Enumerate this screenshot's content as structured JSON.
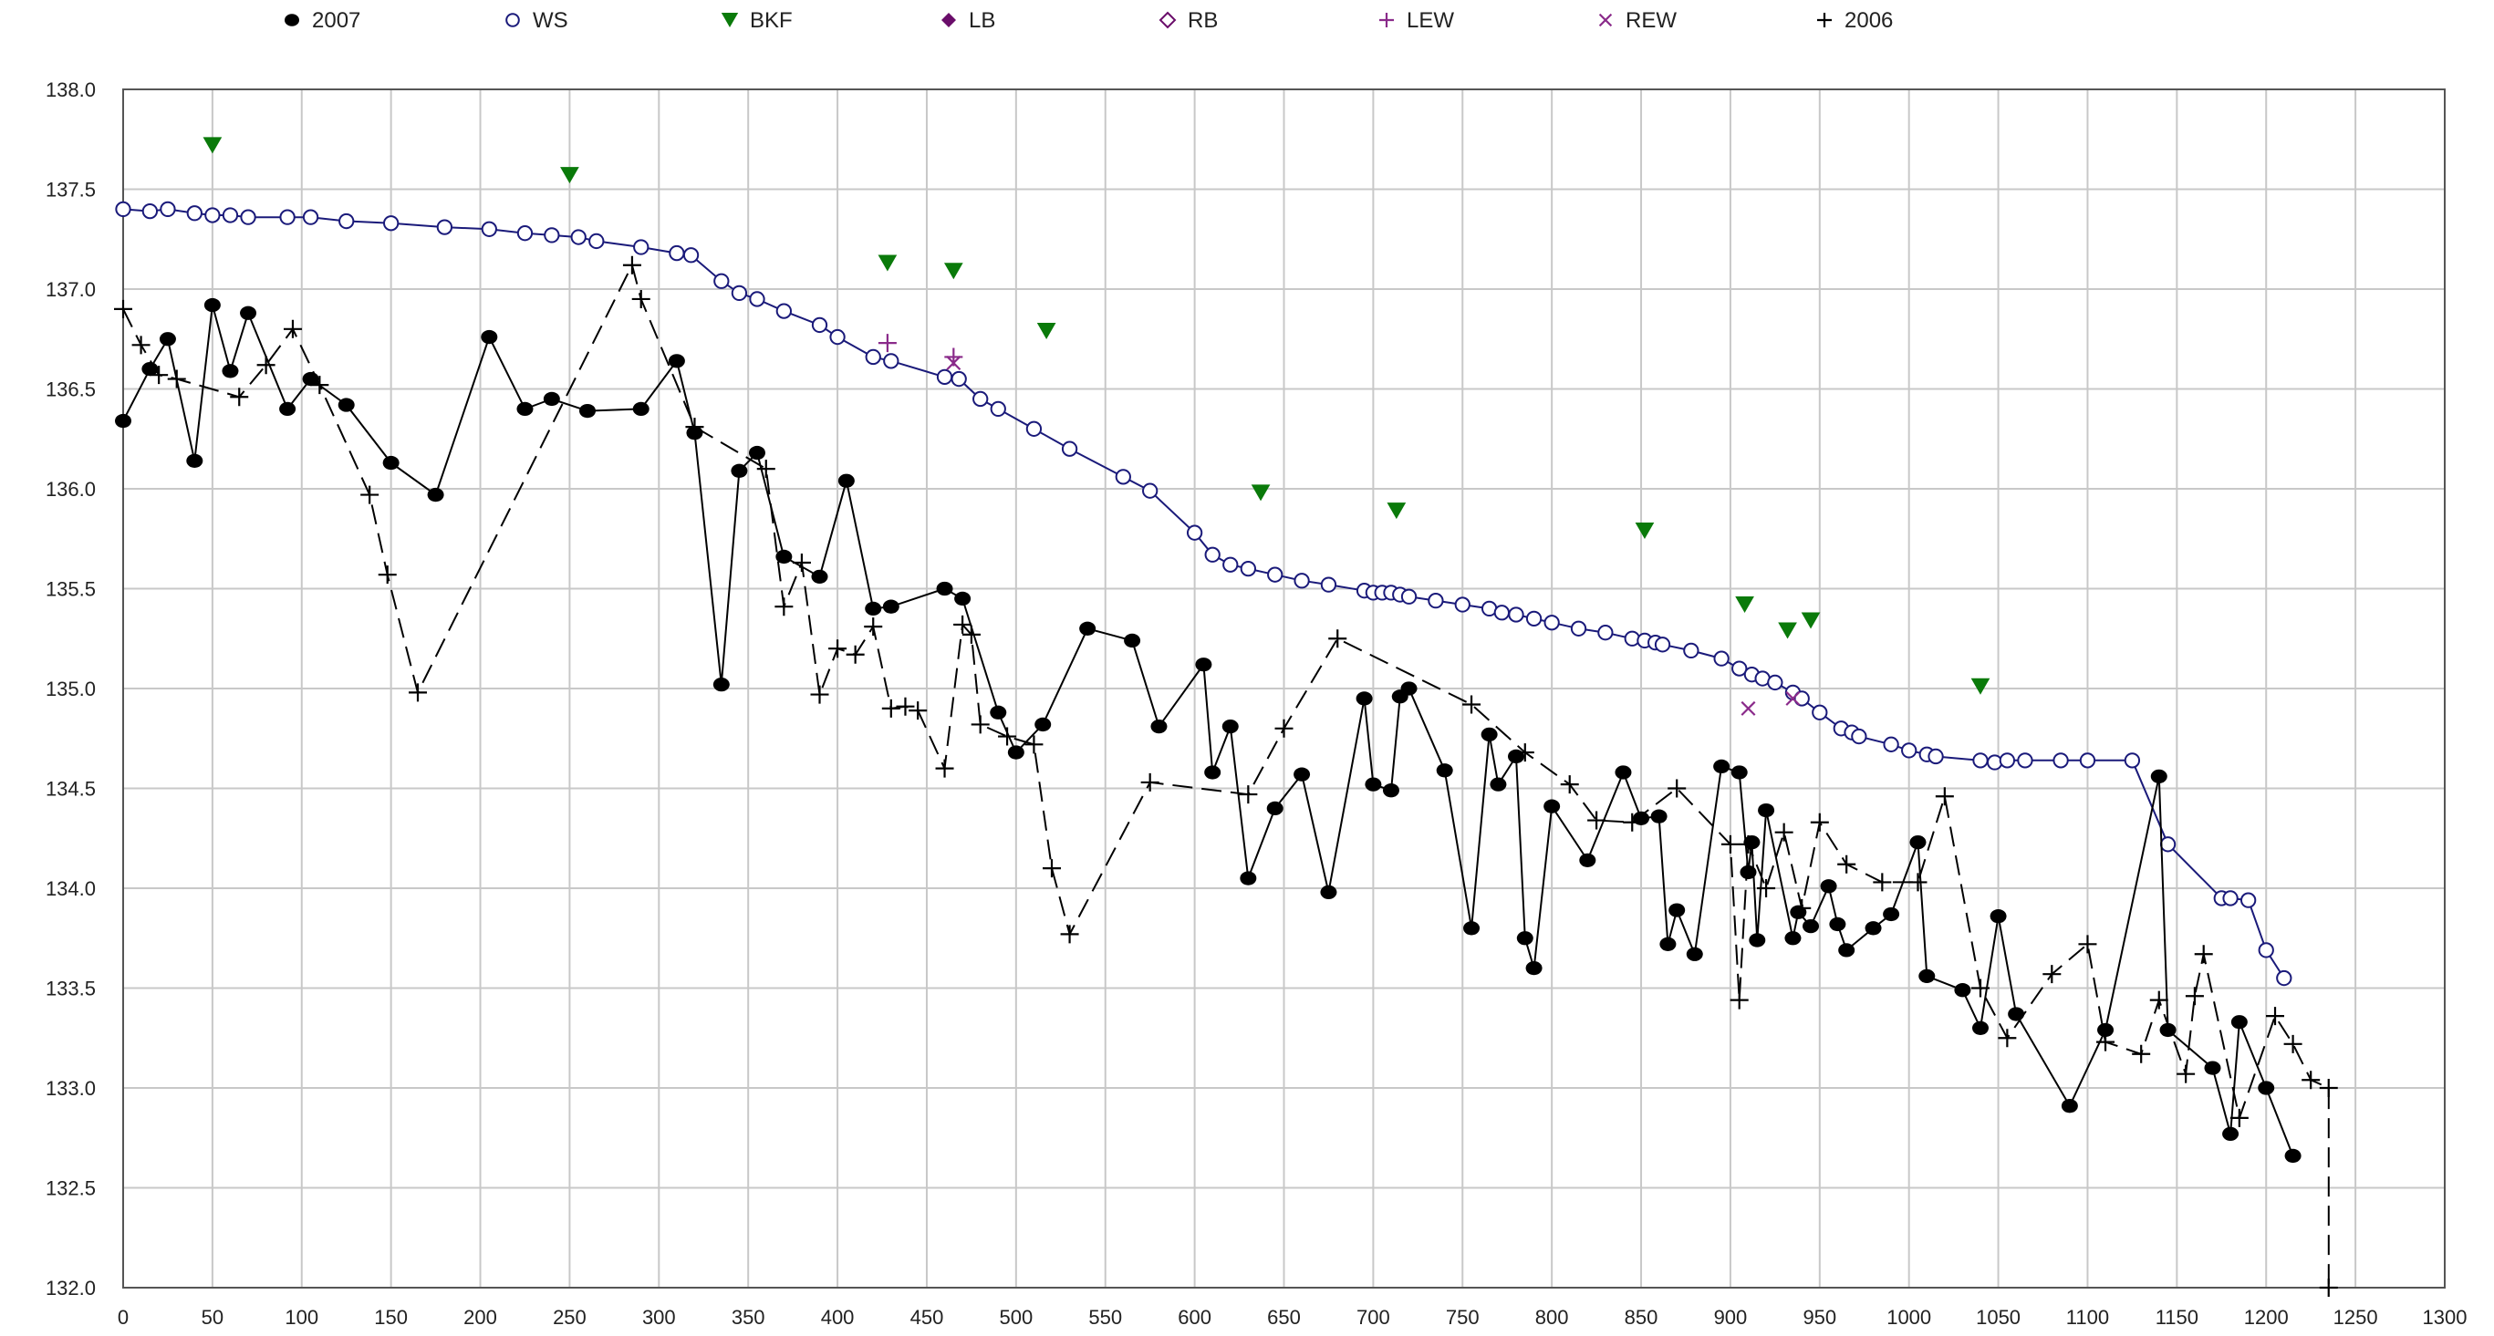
{
  "chart_data": {
    "type": "scatter",
    "title": "",
    "xlabel": "",
    "ylabel": "",
    "xlim": [
      0,
      1300
    ],
    "ylim": [
      132.0,
      138.0
    ],
    "x_ticks": [
      0,
      50,
      100,
      150,
      200,
      250,
      300,
      350,
      400,
      450,
      500,
      550,
      600,
      650,
      700,
      750,
      800,
      850,
      900,
      950,
      1000,
      1050,
      1100,
      1150,
      1200,
      1250,
      1300
    ],
    "y_ticks": [
      132.0,
      132.5,
      133.0,
      133.5,
      134.0,
      134.5,
      135.0,
      135.5,
      136.0,
      136.5,
      137.0,
      137.5,
      138.0
    ],
    "grid": true,
    "legend_position": "top",
    "series": [
      {
        "name": "2007",
        "marker": "filled-circle",
        "line": "solid",
        "color": "#000000",
        "points": [
          [
            0,
            136.34
          ],
          [
            15,
            136.6
          ],
          [
            25,
            136.75
          ],
          [
            40,
            136.14
          ],
          [
            50,
            136.92
          ],
          [
            60,
            136.59
          ],
          [
            70,
            136.88
          ],
          [
            92,
            136.4
          ],
          [
            105,
            136.55
          ],
          [
            125,
            136.42
          ],
          [
            150,
            136.13
          ],
          [
            175,
            135.97
          ],
          [
            205,
            136.76
          ],
          [
            225,
            136.4
          ],
          [
            240,
            136.45
          ],
          [
            260,
            136.39
          ],
          [
            290,
            136.4
          ],
          [
            310,
            136.64
          ],
          [
            320,
            136.28
          ],
          [
            335,
            135.02
          ],
          [
            345,
            136.09
          ],
          [
            355,
            136.18
          ],
          [
            370,
            135.66
          ],
          [
            390,
            135.56
          ],
          [
            405,
            136.04
          ],
          [
            420,
            135.4
          ],
          [
            430,
            135.41
          ],
          [
            460,
            135.5
          ],
          [
            470,
            135.45
          ],
          [
            490,
            134.88
          ],
          [
            500,
            134.68
          ],
          [
            515,
            134.82
          ],
          [
            540,
            135.3
          ],
          [
            565,
            135.24
          ],
          [
            580,
            134.81
          ],
          [
            605,
            135.12
          ],
          [
            610,
            134.58
          ],
          [
            620,
            134.81
          ],
          [
            630,
            134.05
          ],
          [
            645,
            134.4
          ],
          [
            660,
            134.57
          ],
          [
            675,
            133.98
          ],
          [
            695,
            134.95
          ],
          [
            700,
            134.52
          ],
          [
            710,
            134.49
          ],
          [
            715,
            134.96
          ],
          [
            720,
            135.0
          ],
          [
            740,
            134.59
          ],
          [
            755,
            133.8
          ],
          [
            765,
            134.77
          ],
          [
            770,
            134.52
          ],
          [
            780,
            134.66
          ],
          [
            785,
            133.75
          ],
          [
            790,
            133.6
          ],
          [
            800,
            134.41
          ],
          [
            820,
            134.14
          ],
          [
            840,
            134.58
          ],
          [
            850,
            134.35
          ],
          [
            860,
            134.36
          ],
          [
            865,
            133.72
          ],
          [
            870,
            133.89
          ],
          [
            880,
            133.67
          ],
          [
            895,
            134.61
          ],
          [
            905,
            134.58
          ],
          [
            910,
            134.08
          ],
          [
            912,
            134.23
          ],
          [
            915,
            133.74
          ],
          [
            920,
            134.39
          ],
          [
            935,
            133.75
          ],
          [
            938,
            133.88
          ],
          [
            945,
            133.81
          ],
          [
            955,
            134.01
          ],
          [
            960,
            133.82
          ],
          [
            965,
            133.69
          ],
          [
            980,
            133.8
          ],
          [
            990,
            133.87
          ],
          [
            1005,
            134.23
          ],
          [
            1010,
            133.56
          ],
          [
            1030,
            133.49
          ],
          [
            1040,
            133.3
          ],
          [
            1050,
            133.86
          ],
          [
            1060,
            133.37
          ],
          [
            1090,
            132.91
          ],
          [
            1110,
            133.29
          ],
          [
            1140,
            134.56
          ],
          [
            1145,
            133.29
          ],
          [
            1170,
            133.1
          ],
          [
            1180,
            132.77
          ],
          [
            1185,
            133.33
          ],
          [
            1200,
            133.0
          ],
          [
            1215,
            132.66
          ]
        ]
      },
      {
        "name": "WS",
        "marker": "open-circle",
        "line": "solid",
        "color": "#1a1a7a",
        "points": [
          [
            0,
            137.4
          ],
          [
            15,
            137.39
          ],
          [
            25,
            137.4
          ],
          [
            40,
            137.38
          ],
          [
            50,
            137.37
          ],
          [
            60,
            137.37
          ],
          [
            70,
            137.36
          ],
          [
            92,
            137.36
          ],
          [
            105,
            137.36
          ],
          [
            125,
            137.34
          ],
          [
            150,
            137.33
          ],
          [
            180,
            137.31
          ],
          [
            205,
            137.3
          ],
          [
            225,
            137.28
          ],
          [
            240,
            137.27
          ],
          [
            255,
            137.26
          ],
          [
            265,
            137.24
          ],
          [
            290,
            137.21
          ],
          [
            310,
            137.18
          ],
          [
            318,
            137.17
          ],
          [
            335,
            137.04
          ],
          [
            345,
            136.98
          ],
          [
            355,
            136.95
          ],
          [
            370,
            136.89
          ],
          [
            390,
            136.82
          ],
          [
            400,
            136.76
          ],
          [
            420,
            136.66
          ],
          [
            430,
            136.64
          ],
          [
            460,
            136.56
          ],
          [
            468,
            136.55
          ],
          [
            480,
            136.45
          ],
          [
            490,
            136.4
          ],
          [
            510,
            136.3
          ],
          [
            530,
            136.2
          ],
          [
            560,
            136.06
          ],
          [
            575,
            135.99
          ],
          [
            600,
            135.78
          ],
          [
            610,
            135.67
          ],
          [
            620,
            135.62
          ],
          [
            630,
            135.6
          ],
          [
            645,
            135.57
          ],
          [
            660,
            135.54
          ],
          [
            675,
            135.52
          ],
          [
            695,
            135.49
          ],
          [
            700,
            135.48
          ],
          [
            705,
            135.48
          ],
          [
            710,
            135.48
          ],
          [
            715,
            135.47
          ],
          [
            720,
            135.46
          ],
          [
            735,
            135.44
          ],
          [
            750,
            135.42
          ],
          [
            765,
            135.4
          ],
          [
            772,
            135.38
          ],
          [
            780,
            135.37
          ],
          [
            790,
            135.35
          ],
          [
            800,
            135.33
          ],
          [
            815,
            135.3
          ],
          [
            830,
            135.28
          ],
          [
            845,
            135.25
          ],
          [
            852,
            135.24
          ],
          [
            858,
            135.23
          ],
          [
            862,
            135.22
          ],
          [
            878,
            135.19
          ],
          [
            895,
            135.15
          ],
          [
            905,
            135.1
          ],
          [
            912,
            135.07
          ],
          [
            918,
            135.05
          ],
          [
            925,
            135.03
          ],
          [
            935,
            134.98
          ],
          [
            940,
            134.95
          ],
          [
            950,
            134.88
          ],
          [
            962,
            134.8
          ],
          [
            968,
            134.78
          ],
          [
            972,
            134.76
          ],
          [
            990,
            134.72
          ],
          [
            1000,
            134.69
          ],
          [
            1010,
            134.67
          ],
          [
            1015,
            134.66
          ],
          [
            1040,
            134.64
          ],
          [
            1048,
            134.63
          ],
          [
            1055,
            134.64
          ],
          [
            1065,
            134.64
          ],
          [
            1085,
            134.64
          ],
          [
            1100,
            134.64
          ],
          [
            1125,
            134.64
          ],
          [
            1145,
            134.22
          ],
          [
            1175,
            133.95
          ],
          [
            1180,
            133.95
          ],
          [
            1190,
            133.94
          ],
          [
            1200,
            133.69
          ],
          [
            1210,
            133.55
          ]
        ]
      },
      {
        "name": "BKF",
        "marker": "filled-triangle-down",
        "line": "none",
        "color": "#0a7a0a",
        "points": [
          [
            50,
            137.72
          ],
          [
            250,
            137.57
          ],
          [
            428,
            137.13
          ],
          [
            465,
            137.09
          ],
          [
            517,
            136.79
          ],
          [
            637,
            135.98
          ],
          [
            713,
            135.89
          ],
          [
            852,
            135.79
          ],
          [
            908,
            135.42
          ],
          [
            932,
            135.29
          ],
          [
            945,
            135.34
          ],
          [
            1040,
            135.01
          ]
        ]
      },
      {
        "name": "LB",
        "marker": "filled-diamond",
        "line": "none",
        "color": "#6a0d6a",
        "points": []
      },
      {
        "name": "RB",
        "marker": "open-diamond",
        "line": "none",
        "color": "#6a0d6a",
        "points": []
      },
      {
        "name": "LEW",
        "marker": "plus",
        "line": "none",
        "color": "#8a2a8a",
        "points": [
          [
            428,
            136.73
          ],
          [
            465,
            136.66
          ]
        ]
      },
      {
        "name": "REW",
        "marker": "x",
        "line": "none",
        "color": "#8a2a8a",
        "points": [
          [
            465,
            136.63
          ],
          [
            910,
            134.9
          ],
          [
            935,
            134.95
          ]
        ]
      },
      {
        "name": "2006",
        "marker": "plus",
        "line": "dashed",
        "color": "#000000",
        "points": [
          [
            0,
            136.9
          ],
          [
            10,
            136.72
          ],
          [
            20,
            136.57
          ],
          [
            30,
            136.55
          ],
          [
            65,
            136.46
          ],
          [
            80,
            136.62
          ],
          [
            95,
            136.8
          ],
          [
            110,
            136.52
          ],
          [
            138,
            135.97
          ],
          [
            148,
            135.57
          ],
          [
            165,
            134.98
          ],
          [
            285,
            137.12
          ],
          [
            290,
            136.95
          ],
          [
            320,
            136.31
          ],
          [
            360,
            136.1
          ],
          [
            370,
            135.41
          ],
          [
            380,
            135.63
          ],
          [
            390,
            134.97
          ],
          [
            400,
            135.2
          ],
          [
            410,
            135.17
          ],
          [
            420,
            135.31
          ],
          [
            430,
            134.9
          ],
          [
            438,
            134.91
          ],
          [
            445,
            134.89
          ],
          [
            460,
            134.6
          ],
          [
            470,
            135.32
          ],
          [
            475,
            135.27
          ],
          [
            480,
            134.82
          ],
          [
            495,
            134.76
          ],
          [
            510,
            134.72
          ],
          [
            520,
            134.1
          ],
          [
            530,
            133.77
          ],
          [
            575,
            134.53
          ],
          [
            630,
            134.47
          ],
          [
            650,
            134.8
          ],
          [
            680,
            135.25
          ],
          [
            755,
            134.92
          ],
          [
            785,
            134.68
          ],
          [
            810,
            134.52
          ],
          [
            825,
            134.34
          ],
          [
            845,
            134.33
          ],
          [
            870,
            134.5
          ],
          [
            900,
            134.22
          ],
          [
            905,
            133.44
          ],
          [
            910,
            134.22
          ],
          [
            920,
            134.0
          ],
          [
            930,
            134.28
          ],
          [
            940,
            133.9
          ],
          [
            950,
            134.33
          ],
          [
            965,
            134.12
          ],
          [
            985,
            134.03
          ],
          [
            1005,
            134.03
          ],
          [
            1020,
            134.46
          ],
          [
            1040,
            133.5
          ],
          [
            1055,
            133.25
          ],
          [
            1080,
            133.57
          ],
          [
            1100,
            133.72
          ],
          [
            1110,
            133.23
          ],
          [
            1130,
            133.17
          ],
          [
            1140,
            133.44
          ],
          [
            1155,
            133.07
          ],
          [
            1160,
            133.46
          ],
          [
            1165,
            133.67
          ],
          [
            1185,
            132.85
          ],
          [
            1205,
            133.36
          ],
          [
            1215,
            133.22
          ],
          [
            1225,
            133.04
          ],
          [
            1235,
            133.0
          ],
          [
            1235,
            132.0
          ]
        ]
      }
    ]
  }
}
